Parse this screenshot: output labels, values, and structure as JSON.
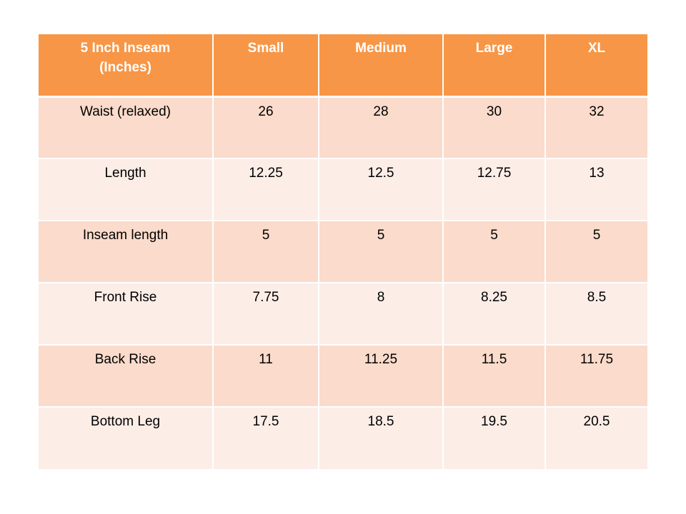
{
  "table": {
    "header": {
      "label_line1": "5 Inch Inseam",
      "label_line2": "(Inches)",
      "sizes": [
        "Small",
        "Medium",
        "Large",
        "XL"
      ]
    },
    "rows": [
      {
        "label": "Waist (relaxed)",
        "values": [
          "26",
          "28",
          "30",
          "32"
        ]
      },
      {
        "label": "Length",
        "values": [
          "12.25",
          "12.5",
          "12.75",
          "13"
        ]
      },
      {
        "label": "Inseam length",
        "values": [
          "5",
          "5",
          "5",
          "5"
        ]
      },
      {
        "label": "Front Rise",
        "values": [
          "7.75",
          "8",
          "8.25",
          "8.5"
        ]
      },
      {
        "label": "Back Rise",
        "values": [
          "11",
          "11.25",
          "11.5",
          "11.75"
        ]
      },
      {
        "label": "Bottom Leg",
        "values": [
          "17.5",
          "18.5",
          "19.5",
          "20.5"
        ]
      }
    ],
    "colors": {
      "header_bg": "#f79646",
      "row_dark_bg": "#fbdbcb",
      "row_light_bg": "#fcede7"
    }
  }
}
